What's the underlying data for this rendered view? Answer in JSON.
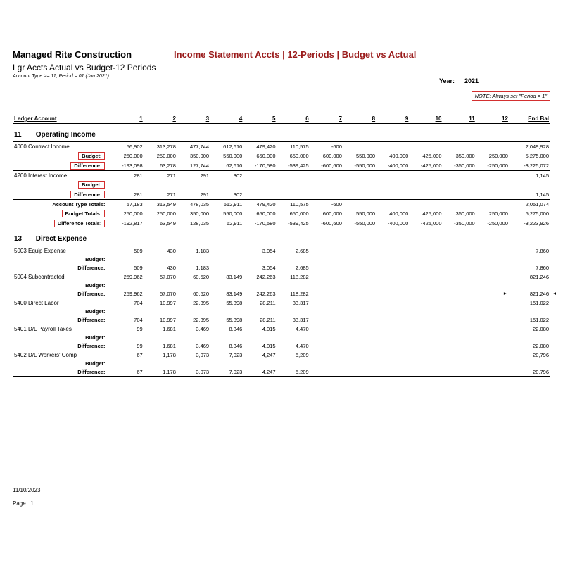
{
  "header": {
    "company": "Managed Rite Construction",
    "main_title": "Income Statement Accts | 12-Periods | Budget vs Actual",
    "subtitle": "Lgr Accts Actual vs Budget-12 Periods",
    "filter": "Account Type >= 11, Period = 01 (Jan 2021)",
    "year_label": "Year:",
    "year_value": "2021",
    "note": "NOTE: Always set \"Period = 1\""
  },
  "columns": {
    "acct": "Ledger Account",
    "p": [
      "1",
      "2",
      "3",
      "4",
      "5",
      "6",
      "7",
      "8",
      "9",
      "10",
      "11",
      "12"
    ],
    "end": "End Bal"
  },
  "sections": [
    {
      "code": "11",
      "name": "Operating Income",
      "accounts": [
        {
          "label": "4000 Contract Income",
          "actual": [
            "56,902",
            "313,278",
            "477,744",
            "612,610",
            "479,420",
            "110,575",
            "-600",
            "",
            "",
            "",
            "",
            "",
            "2,049,928"
          ],
          "budget": [
            "250,000",
            "250,000",
            "350,000",
            "550,000",
            "650,000",
            "650,000",
            "600,000",
            "550,000",
            "400,000",
            "425,000",
            "350,000",
            "250,000",
            "5,275,000"
          ],
          "diff": [
            "-193,098",
            "63,278",
            "127,744",
            "62,610",
            "-170,580",
            "-539,425",
            "-600,600",
            "-550,000",
            "-400,000",
            "-425,000",
            "-350,000",
            "-250,000",
            "-3,225,072"
          ],
          "boxed": true
        },
        {
          "label": "4200 Interest Income",
          "actual": [
            "281",
            "271",
            "291",
            "302",
            "",
            "",
            "",
            "",
            "",
            "",
            "",
            "",
            "1,145"
          ],
          "budget": [
            "",
            "",
            "",
            "",
            "",
            "",
            "",
            "",
            "",
            "",
            "",
            "",
            ""
          ],
          "diff": [
            "281",
            "271",
            "291",
            "302",
            "",
            "",
            "",
            "",
            "",
            "",
            "",
            "",
            "1,145"
          ],
          "boxed": true
        }
      ],
      "totals": {
        "label_actual": "Account Type Totals:",
        "label_budget": "Budget Totals:",
        "label_diff": "Difference Totals:",
        "actual": [
          "57,183",
          "313,549",
          "478,035",
          "612,911",
          "479,420",
          "110,575",
          "-600",
          "",
          "",
          "",
          "",
          "",
          "2,051,074"
        ],
        "budget": [
          "250,000",
          "250,000",
          "350,000",
          "550,000",
          "650,000",
          "650,000",
          "600,000",
          "550,000",
          "400,000",
          "425,000",
          "350,000",
          "250,000",
          "5,275,000"
        ],
        "diff": [
          "-192,817",
          "63,549",
          "128,035",
          "62,911",
          "-170,580",
          "-539,425",
          "-600,600",
          "-550,000",
          "-400,000",
          "-425,000",
          "-350,000",
          "-250,000",
          "-3,223,926"
        ],
        "boxed": true
      }
    },
    {
      "code": "13",
      "name": "Direct Expense",
      "accounts": [
        {
          "label": "5003 Equip Expense",
          "actual": [
            "509",
            "430",
            "1,183",
            "",
            "3,054",
            "2,685",
            "",
            "",
            "",
            "",
            "",
            "",
            "7,860"
          ],
          "budget": [
            "",
            "",
            "",
            "",
            "",
            "",
            "",
            "",
            "",
            "",
            "",
            "",
            ""
          ],
          "diff": [
            "509",
            "430",
            "1,183",
            "",
            "3,054",
            "2,685",
            "",
            "",
            "",
            "",
            "",
            "",
            "7,860"
          ],
          "boxed": false
        },
        {
          "label": "5004 Subcontracted",
          "actual": [
            "259,962",
            "57,070",
            "60,520",
            "83,149",
            "242,263",
            "118,282",
            "",
            "",
            "",
            "",
            "",
            "",
            "821,246"
          ],
          "budget": [
            "",
            "",
            "",
            "",
            "",
            "",
            "",
            "",
            "",
            "",
            "",
            "",
            ""
          ],
          "diff": [
            "259,962",
            "57,070",
            "60,520",
            "83,149",
            "242,263",
            "118,282",
            "",
            "",
            "",
            "",
            "",
            "",
            "821,246"
          ],
          "boxed": false,
          "marker": true
        },
        {
          "label": "5400 Direct Labor",
          "actual": [
            "704",
            "10,997",
            "22,395",
            "55,398",
            "28,211",
            "33,317",
            "",
            "",
            "",
            "",
            "",
            "",
            "151,022"
          ],
          "budget": [
            "",
            "",
            "",
            "",
            "",
            "",
            "",
            "",
            "",
            "",
            "",
            "",
            ""
          ],
          "diff": [
            "704",
            "10,997",
            "22,395",
            "55,398",
            "28,211",
            "33,317",
            "",
            "",
            "",
            "",
            "",
            "",
            "151,022"
          ],
          "boxed": false
        },
        {
          "label": "5401 D/L Payroll Taxes",
          "actual": [
            "99",
            "1,681",
            "3,469",
            "8,346",
            "4,015",
            "4,470",
            "",
            "",
            "",
            "",
            "",
            "",
            "22,080"
          ],
          "budget": [
            "",
            "",
            "",
            "",
            "",
            "",
            "",
            "",
            "",
            "",
            "",
            "",
            ""
          ],
          "diff": [
            "99",
            "1,681",
            "3,469",
            "8,346",
            "4,015",
            "4,470",
            "",
            "",
            "",
            "",
            "",
            "",
            "22,080"
          ],
          "boxed": false
        },
        {
          "label": "5402 D/L Workers' Comp",
          "actual": [
            "67",
            "1,178",
            "3,073",
            "7,023",
            "4,247",
            "5,209",
            "",
            "",
            "",
            "",
            "",
            "",
            "20,796"
          ],
          "budget": [
            "",
            "",
            "",
            "",
            "",
            "",
            "",
            "",
            "",
            "",
            "",
            "",
            ""
          ],
          "diff": [
            "67",
            "1,178",
            "3,073",
            "7,023",
            "4,247",
            "5,209",
            "",
            "",
            "",
            "",
            "",
            "",
            "20,796"
          ],
          "boxed": false,
          "last": true
        }
      ]
    }
  ],
  "labels": {
    "budget": "Budget:",
    "diff": "Difference:"
  },
  "footer": {
    "date": "11/10/2023",
    "page_label": "Page",
    "page_num": "1"
  },
  "style": {
    "accent": "#9a1b1b",
    "box": "#d32f2f",
    "text": "#000000",
    "bg": "#ffffff"
  }
}
